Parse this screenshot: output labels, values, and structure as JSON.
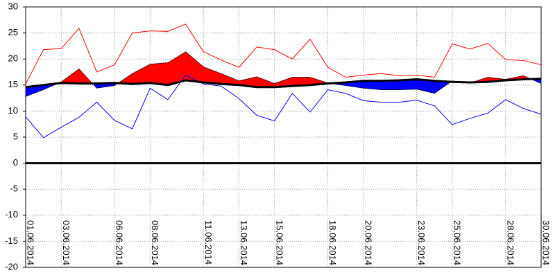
{
  "chart_data": {
    "type": "temperature-band",
    "categories": [
      "01.06.2014",
      null,
      "03.06.2014",
      null,
      null,
      "06.06.2014",
      null,
      "08.06.2014",
      null,
      null,
      "11.06.2014",
      null,
      "13.06.2014",
      null,
      "15.06.2014",
      null,
      null,
      "18.06.2014",
      null,
      "20.06.2014",
      null,
      null,
      "23.06.2014",
      null,
      "25.06.2014",
      null,
      null,
      "28.06.2014",
      null,
      "30.06.2014"
    ],
    "series": [
      {
        "color": "#ff0000",
        "values": [
          15.2,
          21.8,
          22,
          25.9,
          17.5,
          18.9,
          25,
          25.4,
          25.3,
          26.7,
          21.4,
          19.8,
          18.4,
          22.3,
          21.8,
          20,
          23.8,
          18.4,
          16.5,
          16.9,
          17.2,
          16.8,
          16.9,
          16.5,
          22.9,
          21.9,
          23,
          19.9,
          19.7,
          18.9
        ]
      },
      {
        "color": "#0000ff",
        "values": [
          8.9,
          4.9,
          6.9,
          8.8,
          11.7,
          8.2,
          6.6,
          14.4,
          12.2,
          16.9,
          15.2,
          14.8,
          12.4,
          9.2,
          8.1,
          13.4,
          9.8,
          14.1,
          13.4,
          12,
          11.7,
          11.7,
          12.1,
          11,
          7.4,
          8.6,
          9.6,
          12.2,
          10.5,
          9.4
        ]
      },
      {
        "color": "#000000",
        "values": [
          12.8,
          14.1,
          15.6,
          18.1,
          14.4,
          14.9,
          17.2,
          19,
          19.3,
          21.4,
          18.5,
          17.2,
          15.8,
          16.6,
          15.3,
          16.5,
          16.5,
          15.4,
          14.9,
          14.4,
          14.1,
          14.1,
          14.2,
          13.4,
          15.8,
          15.4,
          16.5,
          16.1,
          16.8,
          15.3
        ]
      },
      {
        "color": "#000000",
        "values": [
          14.6,
          15.0,
          15.4,
          15.3,
          15.3,
          15.4,
          15.2,
          15.4,
          15.0,
          15.9,
          15.5,
          15.2,
          15.0,
          14.6,
          14.6,
          14.8,
          15.0,
          15.3,
          15.5,
          15.8,
          15.8,
          15.9,
          16.1,
          15.8,
          15.6,
          15.5,
          15.6,
          15.9,
          16.1,
          16.2
        ]
      }
    ],
    "above_color": "#ff0000",
    "below_color": "#0000ff",
    "ylim": [
      -20,
      30
    ],
    "yticks": [
      -20,
      -15,
      -10,
      -5,
      0,
      5,
      10,
      15,
      20,
      25,
      30
    ],
    "grid": true
  }
}
